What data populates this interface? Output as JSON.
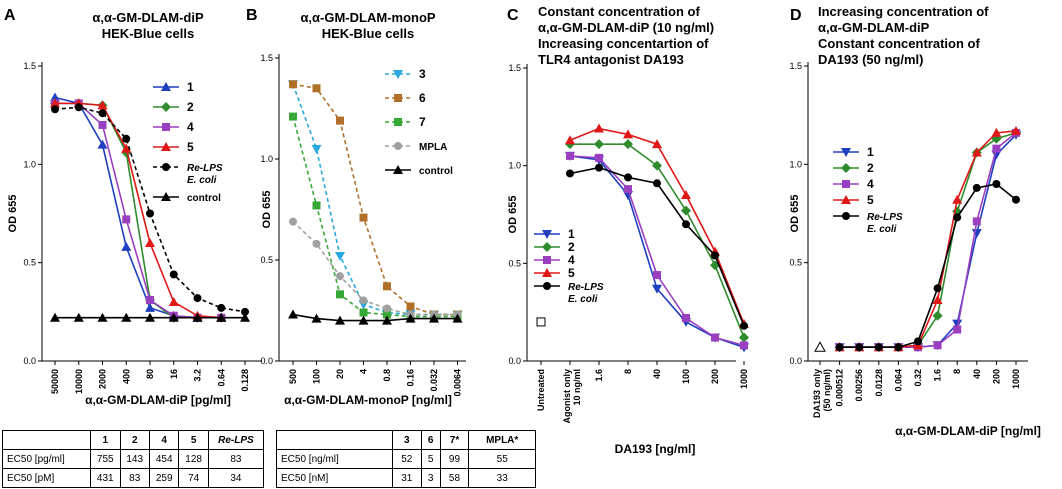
{
  "panels": [
    {
      "letter": "A",
      "title_lines": [
        "α,α-GM-DLAM-diP",
        "HEK-Blue cells"
      ],
      "ylabel": "OD 655",
      "xlabel": "α,α-GM-DLAM-diP [pg/ml]",
      "yticks": [
        "0.0",
        "0.5",
        "1.0",
        "1.5"
      ],
      "xticks": [
        "50000",
        "10000",
        "2000",
        "400",
        "80",
        "16",
        "3.2",
        "0.64",
        "0.128"
      ]
    },
    {
      "letter": "B",
      "title_lines": [
        "α,α-GM-DLAM-monoP",
        "HEK-Blue cells"
      ],
      "ylabel": "OD 655",
      "xlabel": "α,α-GM-DLAM-monoP [ng/ml]",
      "yticks": [
        "0.0",
        "0.5",
        "1.0",
        "1.5"
      ],
      "xticks": [
        "500",
        "100",
        "20",
        "4",
        "0.8",
        "0.16",
        "0.032",
        "0.0064"
      ]
    },
    {
      "letter": "C",
      "title_lines": [
        "Constant concentration of",
        "α,α-GM-DLAM-diP (10 ng/ml)",
        "Increasing concentartion of",
        "TLR4 antagonist  DA193"
      ],
      "ylabel": "OD 655",
      "xlabel": "DA193  [ng/ml]",
      "yticks": [
        "0.0",
        "0.5",
        "1.0",
        "1.5"
      ],
      "xticks": [
        "Untreated",
        "Agonist only",
        "10 ng/ml",
        "1.6",
        "8",
        "40",
        "100",
        "200",
        "1000"
      ]
    },
    {
      "letter": "D",
      "title_lines": [
        "Increasing concentration of",
        "α,α-GM-DLAM-diP",
        "Constant concentration of",
        "DA193 (50 ng/ml)"
      ],
      "ylabel": "OD 655",
      "xlabel": "α,α-GM-DLAM-diP [ng/ml]",
      "yticks": [
        "0.0",
        "0.5",
        "1.0",
        "1.5"
      ],
      "xticks": [
        "DA193 only",
        "(50 ng/ml)",
        "0.000512",
        "0.00256",
        "0.0128",
        "0.064",
        "0.32",
        "1.6",
        "8",
        "40",
        "200",
        "1000"
      ]
    }
  ],
  "chart_data": [
    {
      "type": "line",
      "panel": "A",
      "ylim": [
        0,
        1.5
      ],
      "categories": [
        "50000",
        "10000",
        "2000",
        "400",
        "80",
        "16",
        "3.2",
        "0.64",
        "0.128"
      ],
      "series": [
        {
          "name": "1",
          "color": "#1f3fbf",
          "marker": "triangle-up",
          "dash": "solid",
          "values": [
            1.34,
            1.31,
            1.1,
            0.58,
            0.27,
            0.23,
            0.22,
            0.22,
            null
          ]
        },
        {
          "name": "2",
          "color": "#2e8b2e",
          "marker": "diamond",
          "dash": "solid",
          "values": [
            1.31,
            1.31,
            1.3,
            1.06,
            0.31,
            0.22,
            0.22,
            0.22,
            null
          ]
        },
        {
          "name": "4",
          "color": "#9a3fc0",
          "marker": "square",
          "dash": "solid",
          "values": [
            1.31,
            1.31,
            1.2,
            0.72,
            0.31,
            0.23,
            0.22,
            0.22,
            null
          ]
        },
        {
          "name": "5",
          "color": "#e01818",
          "marker": "triangle-up",
          "dash": "solid",
          "values": [
            1.31,
            1.31,
            1.3,
            1.08,
            0.6,
            0.3,
            0.23,
            0.22,
            null
          ]
        },
        {
          "name": "Re-LPS E. coli",
          "color": "#000000",
          "marker": "circle",
          "dash": "dashed",
          "values": [
            1.28,
            1.29,
            1.26,
            1.13,
            0.75,
            0.44,
            0.32,
            0.27,
            0.25
          ]
        },
        {
          "name": "control",
          "color": "#000000",
          "marker": "triangle-up",
          "dash": "solid",
          "values": [
            0.22,
            0.22,
            0.22,
            0.22,
            0.22,
            0.22,
            0.22,
            0.22,
            0.22
          ]
        }
      ]
    },
    {
      "type": "line",
      "panel": "B",
      "ylim": [
        0,
        1.5
      ],
      "categories": [
        "500",
        "100",
        "20",
        "4",
        "0.8",
        "0.16",
        "0.032",
        "0.0064"
      ],
      "series": [
        {
          "name": "3",
          "color": "#29a8e0",
          "marker": "triangle-down",
          "dash": "dashed",
          "values": [
            1.37,
            1.05,
            0.52,
            0.28,
            0.24,
            0.23,
            0.23,
            0.23
          ]
        },
        {
          "name": "6",
          "color": "#b0702a",
          "marker": "square",
          "dash": "dashed",
          "values": [
            1.37,
            1.35,
            1.19,
            0.71,
            0.37,
            0.27,
            0.23,
            0.23
          ]
        },
        {
          "name": "7",
          "color": "#36a836",
          "marker": "square",
          "dash": "dashed",
          "values": [
            1.21,
            0.77,
            0.33,
            0.24,
            0.23,
            0.22,
            0.22,
            0.22
          ]
        },
        {
          "name": "MPLA",
          "color": "#a0a0a0",
          "marker": "circle",
          "dash": "dashed",
          "values": [
            0.69,
            0.58,
            0.42,
            0.3,
            0.26,
            0.23,
            0.23,
            0.23
          ]
        },
        {
          "name": "control",
          "color": "#000000",
          "marker": "triangle-up",
          "dash": "solid",
          "values": [
            0.23,
            0.21,
            0.2,
            0.2,
            0.2,
            0.21,
            0.21,
            0.21
          ]
        }
      ]
    },
    {
      "type": "line",
      "panel": "C",
      "ylim": [
        0,
        1.5
      ],
      "categories": [
        "Untreated",
        "Agonist only 10 ng/ml",
        "1.6",
        "8",
        "40",
        "100",
        "200",
        "1000"
      ],
      "untreated_value": 0.2,
      "series": [
        {
          "name": "1",
          "color": "#1f3fbf",
          "marker": "triangle-down",
          "dash": "solid",
          "values": [
            null,
            1.05,
            1.03,
            0.85,
            0.37,
            0.2,
            0.12,
            0.07
          ]
        },
        {
          "name": "2",
          "color": "#2e8b2e",
          "marker": "diamond",
          "dash": "solid",
          "values": [
            null,
            1.11,
            1.11,
            1.11,
            1.0,
            0.77,
            0.49,
            0.12
          ]
        },
        {
          "name": "4",
          "color": "#9a3fc0",
          "marker": "square",
          "dash": "solid",
          "values": [
            null,
            1.05,
            1.04,
            0.88,
            0.44,
            0.22,
            0.12,
            0.08
          ]
        },
        {
          "name": "5",
          "color": "#e01818",
          "marker": "triangle-up",
          "dash": "solid",
          "values": [
            null,
            1.13,
            1.19,
            1.16,
            1.11,
            0.85,
            0.56,
            0.19
          ]
        },
        {
          "name": "Re-LPS E. coli",
          "color": "#000000",
          "marker": "circle",
          "dash": "solid",
          "values": [
            null,
            0.96,
            0.99,
            0.94,
            0.91,
            0.7,
            0.54,
            0.18
          ]
        }
      ]
    },
    {
      "type": "line",
      "panel": "D",
      "ylim": [
        0,
        1.5
      ],
      "categories": [
        "DA193 only (50 ng/ml)",
        "0.000512",
        "0.00256",
        "0.0128",
        "0.064",
        "0.32",
        "1.6",
        "8",
        "40",
        "200",
        "1000"
      ],
      "da193_only_value": 0.07,
      "series": [
        {
          "name": "1",
          "color": "#1f3fbf",
          "marker": "triangle-down",
          "dash": "solid",
          "values": [
            null,
            0.07,
            0.07,
            0.07,
            0.07,
            0.07,
            0.08,
            0.19,
            0.65,
            1.05,
            1.15
          ]
        },
        {
          "name": "2",
          "color": "#2e8b2e",
          "marker": "diamond",
          "dash": "solid",
          "values": [
            null,
            0.07,
            0.07,
            0.07,
            0.07,
            0.08,
            0.23,
            0.76,
            1.06,
            1.13,
            1.16
          ]
        },
        {
          "name": "4",
          "color": "#9a3fc0",
          "marker": "square",
          "dash": "solid",
          "values": [
            null,
            0.07,
            0.07,
            0.07,
            0.07,
            0.07,
            0.08,
            0.16,
            0.71,
            1.08,
            1.16
          ]
        },
        {
          "name": "5",
          "color": "#e01818",
          "marker": "triangle-up",
          "dash": "solid",
          "values": [
            null,
            0.07,
            0.07,
            0.07,
            0.07,
            0.08,
            0.31,
            0.82,
            1.06,
            1.16,
            1.17
          ]
        },
        {
          "name": "Re-LPS E. coli",
          "color": "#000000",
          "marker": "circle",
          "dash": "solid",
          "values": [
            null,
            0.07,
            0.07,
            0.07,
            0.07,
            0.1,
            0.37,
            0.73,
            0.88,
            0.9,
            0.82
          ]
        }
      ]
    }
  ],
  "tables": {
    "left": {
      "header": [
        "",
        "1",
        "2",
        "4",
        "5",
        "Re-LPS"
      ],
      "rows": [
        [
          "EC50 [pg/ml]",
          "755",
          "143",
          "454",
          "128",
          "83"
        ],
        [
          "EC50 [pM]",
          "431",
          "83",
          "259",
          "74",
          "34"
        ]
      ]
    },
    "right": {
      "header": [
        "",
        "3",
        "6",
        "7*",
        "MPLA*"
      ],
      "rows": [
        [
          "EC50 [ng/ml]",
          "52",
          "5",
          "99",
          "55"
        ],
        [
          "EC50 [nM]",
          "31",
          "3",
          "58",
          "33"
        ]
      ]
    }
  }
}
